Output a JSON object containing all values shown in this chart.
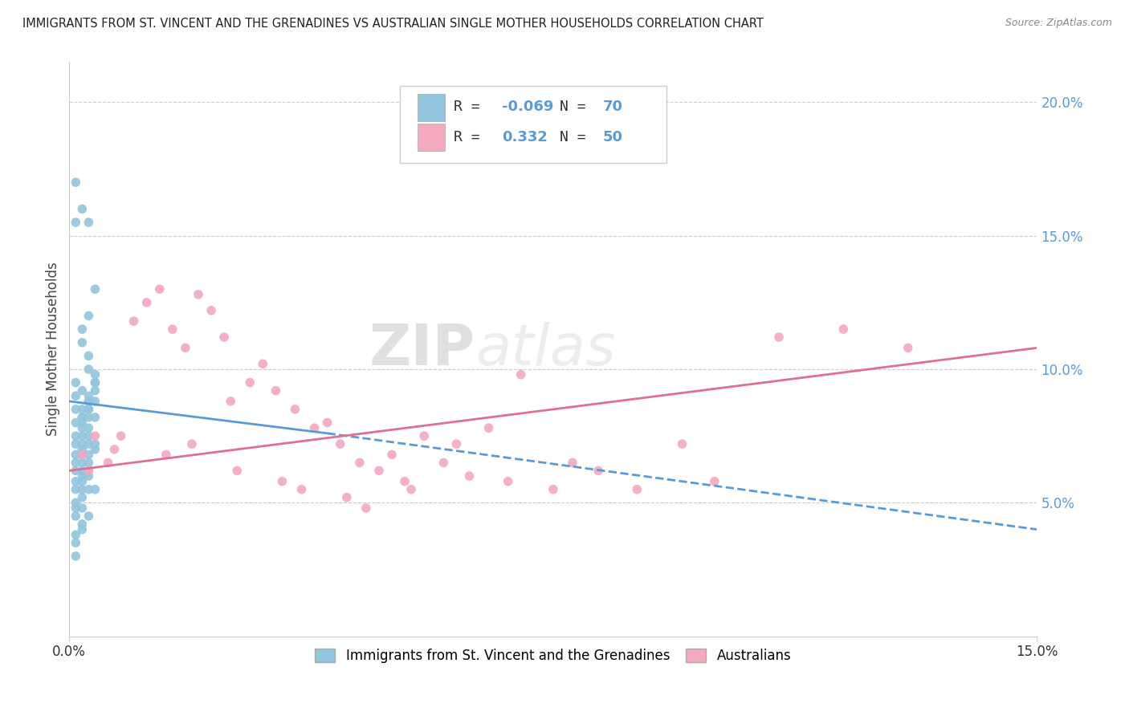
{
  "title": "IMMIGRANTS FROM ST. VINCENT AND THE GRENADINES VS AUSTRALIAN SINGLE MOTHER HOUSEHOLDS CORRELATION CHART",
  "source": "Source: ZipAtlas.com",
  "ylabel": "Single Mother Households",
  "ylabel_right_ticks": [
    "5.0%",
    "10.0%",
    "15.0%",
    "20.0%"
  ],
  "ylabel_right_values": [
    0.05,
    0.1,
    0.15,
    0.2
  ],
  "xlim": [
    0.0,
    0.15
  ],
  "ylim": [
    0.0,
    0.215
  ],
  "blue_R": -0.069,
  "blue_N": 70,
  "pink_R": 0.332,
  "pink_N": 50,
  "blue_color": "#92c5de",
  "pink_color": "#f4a9be",
  "blue_line_color": "#5b9bd5",
  "pink_line_color": "#e07090",
  "watermark_zip": "ZIP",
  "watermark_atlas": "atlas",
  "legend_label_blue": "Immigrants from St. Vincent and the Grenadines",
  "legend_label_pink": "Australians",
  "blue_scatter_x": [
    0.001,
    0.002,
    0.001,
    0.003,
    0.002,
    0.001,
    0.004,
    0.003,
    0.002,
    0.001,
    0.003,
    0.002,
    0.004,
    0.003,
    0.001,
    0.002,
    0.003,
    0.002,
    0.001,
    0.004,
    0.003,
    0.002,
    0.001,
    0.003,
    0.002,
    0.004,
    0.003,
    0.001,
    0.002,
    0.003,
    0.002,
    0.001,
    0.003,
    0.004,
    0.002,
    0.001,
    0.003,
    0.002,
    0.004,
    0.001,
    0.002,
    0.003,
    0.001,
    0.002,
    0.003,
    0.004,
    0.002,
    0.001,
    0.003,
    0.002,
    0.001,
    0.003,
    0.002,
    0.004,
    0.001,
    0.002,
    0.003,
    0.001,
    0.002,
    0.003,
    0.004,
    0.002,
    0.001,
    0.003,
    0.002,
    0.001,
    0.003,
    0.002,
    0.004,
    0.001
  ],
  "blue_scatter_y": [
    0.09,
    0.085,
    0.17,
    0.155,
    0.16,
    0.155,
    0.13,
    0.12,
    0.115,
    0.095,
    0.1,
    0.11,
    0.095,
    0.105,
    0.085,
    0.082,
    0.088,
    0.092,
    0.08,
    0.098,
    0.085,
    0.078,
    0.075,
    0.09,
    0.082,
    0.095,
    0.088,
    0.072,
    0.08,
    0.085,
    0.075,
    0.068,
    0.082,
    0.092,
    0.072,
    0.065,
    0.078,
    0.07,
    0.088,
    0.062,
    0.068,
    0.075,
    0.058,
    0.065,
    0.072,
    0.082,
    0.06,
    0.055,
    0.068,
    0.062,
    0.05,
    0.065,
    0.058,
    0.072,
    0.048,
    0.055,
    0.062,
    0.045,
    0.052,
    0.06,
    0.07,
    0.042,
    0.038,
    0.055,
    0.048,
    0.035,
    0.045,
    0.04,
    0.055,
    0.03
  ],
  "pink_scatter_x": [
    0.002,
    0.004,
    0.012,
    0.01,
    0.014,
    0.016,
    0.02,
    0.022,
    0.018,
    0.024,
    0.008,
    0.006,
    0.028,
    0.03,
    0.025,
    0.032,
    0.035,
    0.038,
    0.042,
    0.04,
    0.05,
    0.055,
    0.048,
    0.045,
    0.06,
    0.065,
    0.052,
    0.058,
    0.07,
    0.075,
    0.003,
    0.007,
    0.015,
    0.019,
    0.026,
    0.033,
    0.036,
    0.043,
    0.046,
    0.053,
    0.062,
    0.068,
    0.078,
    0.082,
    0.088,
    0.095,
    0.1,
    0.11,
    0.12,
    0.13
  ],
  "pink_scatter_y": [
    0.068,
    0.075,
    0.125,
    0.118,
    0.13,
    0.115,
    0.128,
    0.122,
    0.108,
    0.112,
    0.075,
    0.065,
    0.095,
    0.102,
    0.088,
    0.092,
    0.085,
    0.078,
    0.072,
    0.08,
    0.068,
    0.075,
    0.062,
    0.065,
    0.072,
    0.078,
    0.058,
    0.065,
    0.098,
    0.055,
    0.062,
    0.07,
    0.068,
    0.072,
    0.062,
    0.058,
    0.055,
    0.052,
    0.048,
    0.055,
    0.06,
    0.058,
    0.065,
    0.062,
    0.055,
    0.072,
    0.058,
    0.112,
    0.115,
    0.108
  ]
}
